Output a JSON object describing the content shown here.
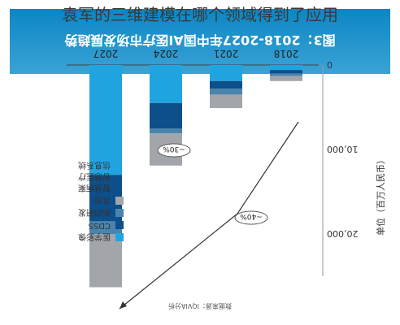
{
  "overlay_title": "袁军的三维建模在哪个领域得到了应用",
  "source_note": "数据来源：IQVIA分析",
  "legend": {
    "items": [
      {
        "label": "医学影像",
        "color": "#1fa4e0"
      },
      {
        "label": "CDSS",
        "color": "#0d4f8b"
      },
      {
        "label": "新药研发",
        "color": "#4a84ad"
      },
      {
        "label": "其他:",
        "color": "#a2a6ab"
      }
    ],
    "other_details": [
      "智慧病案",
      "智慧医疗",
      "信息系统"
    ]
  },
  "y_axis_title": "单位（百万人民币）",
  "arrow_labels": [
    "~40%",
    "~30%"
  ],
  "chart_data": {
    "type": "bar",
    "title": "图3：2018-2027年中国AI医疗市场发展趋势",
    "categories": [
      "2018",
      "2021",
      "2024",
      "2027"
    ],
    "series": [
      {
        "name": "医学影像",
        "values": [
          600,
          1900,
          4500,
          13000
        ]
      },
      {
        "name": "CDSS",
        "values": [
          400,
          900,
          3000,
          5500
        ]
      },
      {
        "name": "新药研发",
        "values": [
          300,
          700,
          600,
          1500
        ]
      },
      {
        "name": "其他:",
        "values": [
          600,
          1600,
          3800,
          6300
        ]
      }
    ],
    "ylim": [
      0,
      25000
    ],
    "yticks": [
      "0",
      "10,000",
      "20,000"
    ],
    "stacked": true,
    "legend_position": "right",
    "grid": false
  }
}
